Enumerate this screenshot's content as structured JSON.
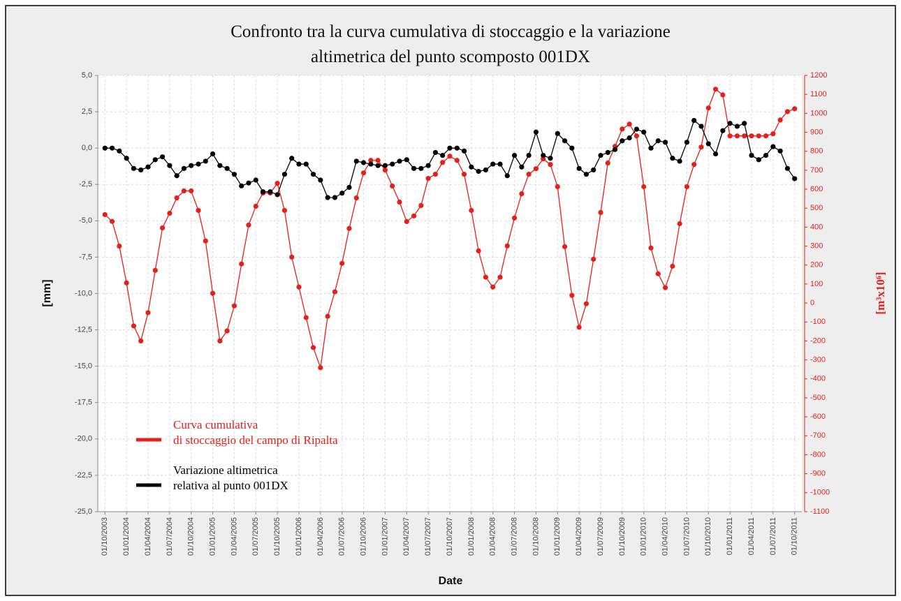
{
  "chart_data": {
    "type": "line",
    "title": "Confronto tra la curva cumulativa di stoccaggio e la variazione\naltimetrica del punto scomposto 001DX",
    "xlabel": "Date",
    "ylabel": "[mm]",
    "y2label": "[m³x10⁶]",
    "x": [
      "01/10/2003",
      "01/11/2003",
      "01/12/2003",
      "01/01/2004",
      "01/02/2004",
      "01/03/2004",
      "01/04/2004",
      "01/05/2004",
      "01/06/2004",
      "01/07/2004",
      "01/08/2004",
      "01/09/2004",
      "01/10/2004",
      "01/11/2004",
      "01/12/2004",
      "01/01/2005",
      "01/02/2005",
      "01/03/2005",
      "01/04/2005",
      "01/05/2005",
      "01/06/2005",
      "01/07/2005",
      "01/08/2005",
      "01/09/2005",
      "01/10/2005",
      "01/11/2005",
      "01/12/2005",
      "01/01/2006",
      "01/02/2006",
      "01/03/2006",
      "01/04/2006",
      "01/05/2006",
      "01/06/2006",
      "01/07/2006",
      "01/08/2006",
      "01/09/2006",
      "01/10/2006",
      "01/11/2006",
      "01/12/2006",
      "01/01/2007",
      "01/02/2007",
      "01/03/2007",
      "01/04/2007",
      "01/05/2007",
      "01/06/2007",
      "01/07/2007",
      "01/08/2007",
      "01/09/2007",
      "01/10/2007",
      "01/11/2007",
      "01/12/2007",
      "01/01/2008",
      "01/02/2008",
      "01/03/2008",
      "01/04/2008",
      "01/05/2008",
      "01/06/2008",
      "01/07/2008",
      "01/08/2008",
      "01/09/2008",
      "01/10/2008",
      "01/11/2008",
      "01/12/2008",
      "01/01/2009",
      "01/02/2009",
      "01/03/2009",
      "01/04/2009",
      "01/05/2009",
      "01/06/2009",
      "01/07/2009",
      "01/08/2009",
      "01/09/2009",
      "01/10/2009",
      "01/11/2009",
      "01/12/2009",
      "01/01/2010",
      "01/02/2010",
      "01/03/2010",
      "01/04/2010",
      "01/05/2010",
      "01/06/2010",
      "01/07/2010",
      "01/08/2010",
      "01/09/2010",
      "01/10/2010",
      "01/11/2010",
      "01/12/2010",
      "01/01/2011",
      "01/02/2011",
      "01/03/2011",
      "01/04/2011",
      "01/05/2011",
      "01/06/2011",
      "01/07/2011",
      "01/08/2011",
      "01/09/2011",
      "01/10/2011"
    ],
    "series": [
      {
        "name": "Curva cumulativa\ndi stoccaggio del campo di Ripalta",
        "color": "#e3201b",
        "axis": "y2",
        "values": [
          466,
          430,
          300,
          106,
          -121,
          -200,
          -51,
          172,
          396,
          473,
          554,
          591,
          591,
          488,
          327,
          51,
          -200,
          -147,
          -15,
          206,
          411,
          510,
          580,
          580,
          631,
          488,
          242,
          84,
          -77,
          -235,
          -341,
          -70,
          59,
          209,
          393,
          554,
          686,
          752,
          752,
          701,
          617,
          532,
          429,
          459,
          514,
          657,
          679,
          741,
          774,
          752,
          679,
          488,
          275,
          136,
          84,
          136,
          301,
          448,
          576,
          679,
          708,
          760,
          730,
          613,
          297,
          40,
          -128,
          -4,
          231,
          477,
          738,
          826,
          917,
          943,
          881,
          613,
          290,
          154,
          81,
          194,
          418,
          613,
          730,
          822,
          1028,
          1127,
          1097,
          881,
          881,
          881,
          881,
          881,
          881,
          892,
          965,
          1009,
          1024
        ]
      },
      {
        "name": "Variazione altimetrica\nrelativa al punto 001DX",
        "color": "#000000",
        "values": [
          0,
          0,
          -0.2,
          -0.7,
          -1.4,
          -1.5,
          -1.3,
          -0.8,
          -0.6,
          -1.2,
          -1.9,
          -1.4,
          -1.2,
          -1.1,
          -0.9,
          -0.4,
          -1.2,
          -1.4,
          -1.8,
          -2.6,
          -2.4,
          -2.2,
          -3.0,
          -3.0,
          -3.2,
          -1.8,
          -0.7,
          -1.1,
          -1.1,
          -1.8,
          -2.2,
          -3.4,
          -3.4,
          -3.1,
          -2.7,
          -0.9,
          -1.0,
          -1.1,
          -1.2,
          -1.2,
          -1.1,
          -0.9,
          -0.8,
          -1.4,
          -1.4,
          -1.2,
          -0.3,
          -0.5,
          0,
          0,
          -0.2,
          -1.3,
          -1.6,
          -1.5,
          -1.1,
          -1.1,
          -1.9,
          -0.5,
          -1.3,
          -0.5,
          1.1,
          -0.5,
          -0.7,
          1.0,
          0.5,
          0,
          -1.4,
          -1.8,
          -1.5,
          -0.5,
          -0.3,
          -0.1,
          0.5,
          0.7,
          1.3,
          1.1,
          0,
          0.5,
          0.4,
          -0.7,
          -0.9,
          0.4,
          1.9,
          1.5,
          0.3,
          -0.4,
          1.2,
          1.7,
          1.5,
          1.7,
          -0.5,
          -0.8,
          -0.5,
          0.1,
          -0.2,
          -1.4,
          -2.1
        ]
      }
    ],
    "xlim": [
      "01/09/2003",
      "01/11/2011"
    ],
    "xticks": [
      "01/10/2003",
      "01/01/2004",
      "01/04/2004",
      "01/07/2004",
      "01/10/2004",
      "01/01/2005",
      "01/04/2005",
      "01/07/2005",
      "01/10/2005",
      "01/01/2006",
      "01/04/2006",
      "01/07/2006",
      "01/10/2006",
      "01/01/2007",
      "01/04/2007",
      "01/07/2007",
      "01/10/2007",
      "01/01/2008",
      "01/04/2008",
      "01/07/2008",
      "01/10/2008",
      "01/01/2009",
      "01/04/2009",
      "01/07/2009",
      "01/10/2009",
      "01/01/2010",
      "01/04/2010",
      "01/07/2010",
      "01/10/2010",
      "01/01/2011",
      "01/04/2011",
      "01/07/2011",
      "01/10/2011"
    ],
    "ylim": [
      -25,
      5
    ],
    "yticks": [
      {
        "value": 5,
        "label": "5,0"
      },
      {
        "value": 2.5,
        "label": "2,5"
      },
      {
        "value": 0,
        "label": "0,0"
      },
      {
        "value": -2.5,
        "label": "-2,5"
      },
      {
        "value": -5,
        "label": "-5,0"
      },
      {
        "value": -7.5,
        "label": "-7,5"
      },
      {
        "value": -10,
        "label": "-10,0"
      },
      {
        "value": -12.5,
        "label": "-12,5"
      },
      {
        "value": -15,
        "label": "-15,0"
      },
      {
        "value": -17.5,
        "label": "-17,5"
      },
      {
        "value": -20,
        "label": "-20,0"
      },
      {
        "value": -22.5,
        "label": "-22,5"
      },
      {
        "value": -25,
        "label": "-25,0"
      }
    ],
    "y2lim": [
      -1100,
      1200
    ],
    "y2ticks": [
      1200,
      1100,
      1000,
      900,
      800,
      700,
      600,
      500,
      400,
      300,
      200,
      100,
      0,
      -100,
      -200,
      -300,
      -400,
      -500,
      -600,
      -700,
      -800,
      -900,
      -1000,
      -1100
    ],
    "grid": true,
    "legend": "lower left"
  }
}
